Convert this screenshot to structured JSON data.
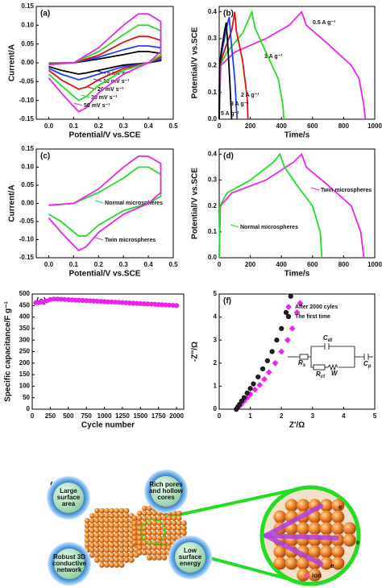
{
  "chart_data": [
    {
      "type": "line",
      "panel": "(a)",
      "xlabel": "Potential/V vs.SCE",
      "ylabel": "Current/A",
      "xlim": [
        -0.05,
        0.5
      ],
      "xticks": [
        {
          "value": 0,
          "label": "0.0"
        },
        0.1,
        0.2,
        0.3,
        0.4,
        0.5
      ],
      "ylim": [
        -0.15,
        0.15
      ],
      "yticks": [
        -0.15,
        {
          "value": -0.1,
          "label": "-0.10"
        },
        -0.05,
        {
          "value": 0,
          "label": "0.00"
        },
        0.05,
        {
          "value": 0.1,
          "label": "0.10"
        },
        0.15
      ],
      "x": [
        0,
        0.1,
        0.2,
        0.3,
        0.36,
        0.4,
        0.45,
        0.45,
        0.4,
        0.3,
        0.2,
        0.15,
        0.12,
        0.05,
        0
      ],
      "series": [
        {
          "name": "5 mV s⁻¹",
          "color": "#000000",
          "values": [
            -0.001,
            0,
            0.01,
            0.022,
            0.03,
            0.03,
            0.025,
            0.006,
            0,
            -0.006,
            -0.02,
            -0.027,
            -0.03,
            -0.02,
            -0.01
          ]
        },
        {
          "name": "10 mV s⁻¹",
          "color": "#1f3fff",
          "values": [
            -0.002,
            0,
            0.015,
            0.035,
            0.045,
            0.045,
            0.04,
            0.01,
            0,
            -0.01,
            -0.03,
            -0.04,
            -0.045,
            -0.03,
            -0.015
          ]
        },
        {
          "name": "20 mV s⁻¹",
          "color": "#e01010",
          "values": [
            -0.003,
            0,
            0.02,
            0.055,
            0.07,
            0.07,
            0.06,
            0.015,
            0,
            -0.015,
            -0.045,
            -0.065,
            -0.07,
            -0.045,
            -0.02
          ]
        },
        {
          "name": "30 mV s⁻¹",
          "color": "#22dd22",
          "values": [
            -0.004,
            0,
            0.03,
            0.075,
            0.1,
            0.1,
            0.085,
            0.02,
            0,
            -0.02,
            -0.06,
            -0.09,
            -0.1,
            -0.06,
            -0.03
          ]
        },
        {
          "name": "50 mV s⁻¹",
          "color": "#ee22ee",
          "values": [
            -0.005,
            0,
            0.04,
            0.1,
            0.13,
            0.13,
            0.11,
            0.03,
            0,
            -0.03,
            -0.08,
            -0.12,
            -0.13,
            -0.08,
            -0.04
          ]
        }
      ]
    },
    {
      "type": "line",
      "panel": "(b)",
      "xlabel": "Time/s",
      "ylabel": "Potential/V vs.SCE",
      "xlim": [
        0,
        1000
      ],
      "xticks": [
        0,
        200,
        400,
        600,
        800,
        1000
      ],
      "ylim": [
        0,
        0.42
      ],
      "yticks": [
        {
          "value": 0,
          "label": "0.0"
        },
        0.1,
        0.2,
        0.3,
        0.4
      ],
      "series": [
        {
          "name": "0.5 A g⁻¹",
          "color": "#ee22ee",
          "x": [
            0,
            10,
            100,
            300,
            450,
            530,
            560,
            700,
            850,
            900,
            930,
            940
          ],
          "values": [
            0,
            0.2,
            0.25,
            0.3,
            0.35,
            0.4,
            0.35,
            0.28,
            0.2,
            0.15,
            0.05,
            0
          ]
        },
        {
          "name": "1 A g⁻¹",
          "color": "#22dd22",
          "x": [
            0,
            5,
            50,
            150,
            210,
            230,
            300,
            380,
            410,
            415
          ],
          "values": [
            0,
            0.2,
            0.25,
            0.32,
            0.4,
            0.34,
            0.25,
            0.15,
            0.05,
            0
          ]
        },
        {
          "name": "2 A g⁻¹",
          "color": "#e01010",
          "x": [
            0,
            3,
            30,
            80,
            100,
            110,
            150,
            180,
            185
          ],
          "values": [
            0,
            0.2,
            0.25,
            0.33,
            0.4,
            0.33,
            0.22,
            0.08,
            0
          ]
        },
        {
          "name": "3 A g⁻¹",
          "color": "#1f3fff",
          "x": [
            0,
            2,
            20,
            55,
            65,
            75,
            100,
            115
          ],
          "values": [
            0,
            0.2,
            0.26,
            0.36,
            0.38,
            0.3,
            0.15,
            0
          ]
        },
        {
          "name": "5 A g⁻¹",
          "color": "#000000",
          "x": [
            0,
            2,
            15,
            35,
            45,
            55,
            70,
            80
          ],
          "values": [
            0,
            0.2,
            0.26,
            0.33,
            0.36,
            0.28,
            0.12,
            0
          ]
        }
      ]
    },
    {
      "type": "line",
      "panel": "(c)",
      "xlabel": "Potential/V vs.SCE",
      "ylabel": "Current/A",
      "xlim": [
        -0.05,
        0.5
      ],
      "xticks": [
        {
          "value": 0,
          "label": "0.0"
        },
        0.1,
        0.2,
        0.3,
        0.4,
        0.5
      ],
      "ylim": [
        -0.15,
        0.15
      ],
      "yticks": [
        -0.15,
        {
          "value": -0.1,
          "label": "-0.10"
        },
        -0.05,
        {
          "value": 0,
          "label": "0.00"
        },
        0.05,
        {
          "value": 0.1,
          "label": "0.10"
        },
        0.15
      ],
      "x": [
        0,
        0.1,
        0.2,
        0.3,
        0.36,
        0.4,
        0.45,
        0.45,
        0.4,
        0.3,
        0.2,
        0.15,
        0.12,
        0.05,
        0
      ],
      "series": [
        {
          "name": "Normal microspheres",
          "color": "#22dd22",
          "values": [
            -0.005,
            0,
            0.03,
            0.07,
            0.1,
            0.1,
            0.08,
            0.02,
            0,
            -0.02,
            -0.06,
            -0.09,
            -0.09,
            -0.05,
            -0.03
          ]
        },
        {
          "name": "Twin microspheres",
          "color": "#ee22ee",
          "values": [
            -0.005,
            0,
            0.04,
            0.1,
            0.13,
            0.13,
            0.11,
            0.03,
            0,
            -0.03,
            -0.08,
            -0.12,
            -0.13,
            -0.08,
            -0.04
          ]
        }
      ]
    },
    {
      "type": "line",
      "panel": "(d)",
      "xlabel": "Time/s",
      "ylabel": "Potential/V vs.SCE",
      "xlim": [
        0,
        1000
      ],
      "xticks": [
        0,
        200,
        400,
        600,
        800,
        1000
      ],
      "ylim": [
        0,
        0.42
      ],
      "yticks": [
        {
          "value": 0,
          "label": "0.0"
        },
        0.1,
        0.2,
        0.3,
        0.4
      ],
      "series": [
        {
          "name": "Twin microspheres",
          "color": "#ee22ee",
          "x": [
            0,
            8,
            80,
            300,
            480,
            530,
            560,
            700,
            850,
            910,
            930
          ],
          "values": [
            0,
            0.2,
            0.25,
            0.3,
            0.37,
            0.4,
            0.35,
            0.28,
            0.2,
            0.1,
            0
          ]
        },
        {
          "name": "Normal microspheres",
          "color": "#22dd22",
          "x": [
            0,
            5,
            50,
            200,
            350,
            390,
            420,
            500,
            600,
            650,
            660
          ],
          "values": [
            0,
            0.2,
            0.25,
            0.3,
            0.37,
            0.4,
            0.35,
            0.28,
            0.2,
            0.1,
            0
          ]
        }
      ]
    },
    {
      "type": "scatter",
      "panel": "(e)",
      "xlabel": "Cycle number",
      "ylabel": "Specific capacitance/F g⁻¹",
      "xlim": [
        0,
        2100
      ],
      "xticks": [
        0,
        250,
        500,
        750,
        1000,
        1250,
        1500,
        1750,
        2000
      ],
      "ylim": [
        0,
        500
      ],
      "yticks": [
        0,
        50,
        100,
        150,
        200,
        250,
        300,
        350,
        400,
        450,
        500
      ],
      "x": [
        50,
        100,
        150,
        200,
        250,
        300,
        350,
        400,
        450,
        500,
        550,
        600,
        650,
        700,
        750,
        800,
        850,
        900,
        950,
        1000,
        1050,
        1100,
        1150,
        1200,
        1250,
        1300,
        1350,
        1400,
        1450,
        1500,
        1550,
        1600,
        1650,
        1700,
        1750,
        1800,
        1850,
        1900,
        1950,
        2000
      ],
      "series": [
        {
          "color": "#ee22ee",
          "marker": "circle",
          "values": [
            462,
            463,
            465,
            470,
            476,
            478,
            478,
            477,
            476.2,
            475.3,
            474.5,
            473.6,
            472.8,
            471.9,
            471.1,
            470.3,
            469.4,
            468.6,
            467.7,
            466.9,
            466.0,
            465.2,
            464.3,
            463.5,
            462.7,
            461.8,
            461.0,
            460.1,
            459.3,
            458.4,
            457.6,
            456.8,
            455.9,
            455.1,
            454.2,
            453.4,
            452.5,
            451.7,
            450.8,
            450
          ]
        }
      ]
    },
    {
      "type": "scatter",
      "panel": "(f)",
      "xlabel": "Z'/Ω",
      "ylabel": "-Z''/Ω",
      "xlim": [
        0,
        5
      ],
      "xticks": [
        0,
        1,
        2,
        3,
        4,
        5
      ],
      "ylim": [
        0,
        5
      ],
      "yticks": [
        0,
        1,
        2,
        3,
        4,
        5
      ],
      "series": [
        {
          "name": "After 2000 cyles",
          "color": "#ee22ee",
          "marker": "diamond",
          "x": [
            0.55,
            0.62,
            0.7,
            0.8,
            0.9,
            1.0,
            1.15,
            1.3,
            1.45,
            1.6,
            1.8,
            2.0,
            2.2,
            2.35,
            2.5,
            2.6
          ],
          "values": [
            0,
            0.1,
            0.2,
            0.35,
            0.5,
            0.65,
            0.85,
            1.05,
            1.3,
            1.6,
            2.0,
            2.5,
            3.0,
            3.5,
            4.2,
            4.6
          ]
        },
        {
          "name": "The first time",
          "color": "#111111",
          "marker": "circle",
          "x": [
            0.55,
            0.6,
            0.65,
            0.72,
            0.8,
            0.9,
            1.0,
            1.1,
            1.25,
            1.4,
            1.55,
            1.7,
            1.85,
            2.0,
            2.15,
            2.3
          ],
          "values": [
            0,
            0.1,
            0.2,
            0.35,
            0.5,
            0.7,
            0.9,
            1.1,
            1.4,
            1.75,
            2.1,
            2.5,
            3.0,
            3.5,
            4.2,
            4.9
          ]
        }
      ],
      "circuit": [
        {
          "main": "C",
          "sub": "dl"
        },
        {
          "main": "R",
          "sub": "s"
        },
        {
          "main": "R",
          "sub": "ct"
        },
        {
          "main": "W"
        },
        {
          "main": "C",
          "sub": "p"
        }
      ]
    }
  ],
  "diagram": {
    "label": "(g)",
    "features": [
      [
        "Large",
        "surface",
        "area"
      ],
      [
        "Rich pores",
        "and hollow",
        "cores"
      ],
      [
        "Robust 3D",
        "conductive",
        "network"
      ],
      [
        "Low",
        "surface",
        "energy"
      ]
    ],
    "electrons": [
      "e",
      "e",
      "e"
    ],
    "ion": "ion"
  }
}
